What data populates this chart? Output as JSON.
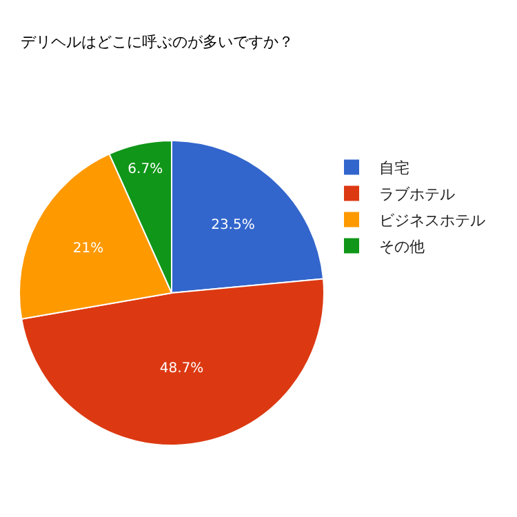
{
  "chart_data": {
    "type": "pie",
    "title": "デリヘルはどこに呼ぶのが多いですか？",
    "categories": [
      "自宅",
      "ラブホテル",
      "ビジネスホテル",
      "その他"
    ],
    "values": [
      23.5,
      48.7,
      21,
      6.7
    ],
    "colors": [
      "#3366cc",
      "#dc3912",
      "#ff9900",
      "#109618"
    ],
    "value_labels": [
      "23.5%",
      "48.7%",
      "21%",
      "6.7%"
    ],
    "legend": "top right"
  }
}
